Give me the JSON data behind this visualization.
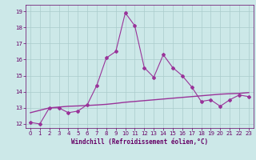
{
  "x": [
    0,
    1,
    2,
    3,
    4,
    5,
    6,
    7,
    8,
    9,
    10,
    11,
    12,
    13,
    14,
    15,
    16,
    17,
    18,
    19,
    20,
    21,
    22,
    23
  ],
  "y_line": [
    12.1,
    12.0,
    13.0,
    13.0,
    12.7,
    12.8,
    13.2,
    14.4,
    16.1,
    16.5,
    18.9,
    18.1,
    15.5,
    14.9,
    16.3,
    15.5,
    15.0,
    14.3,
    13.4,
    13.5,
    13.1,
    13.5,
    13.8,
    13.7
  ],
  "y_trend": [
    12.7,
    12.85,
    13.0,
    13.05,
    13.1,
    13.12,
    13.15,
    13.18,
    13.22,
    13.28,
    13.35,
    13.4,
    13.45,
    13.5,
    13.55,
    13.6,
    13.65,
    13.7,
    13.75,
    13.8,
    13.85,
    13.88,
    13.9,
    13.95
  ],
  "line_color": "#993399",
  "trend_color": "#993399",
  "bg_color": "#cce8e8",
  "grid_color": "#aacccc",
  "text_color": "#660066",
  "xlabel": "Windchill (Refroidissement éolien,°C)",
  "xlim": [
    -0.5,
    23.5
  ],
  "ylim": [
    11.75,
    19.4
  ],
  "yticks": [
    12,
    13,
    14,
    15,
    16,
    17,
    18,
    19
  ],
  "xticks": [
    0,
    1,
    2,
    3,
    4,
    5,
    6,
    7,
    8,
    9,
    10,
    11,
    12,
    13,
    14,
    15,
    16,
    17,
    18,
    19,
    20,
    21,
    22,
    23
  ],
  "tick_fontsize": 5.0,
  "xlabel_fontsize": 5.5
}
